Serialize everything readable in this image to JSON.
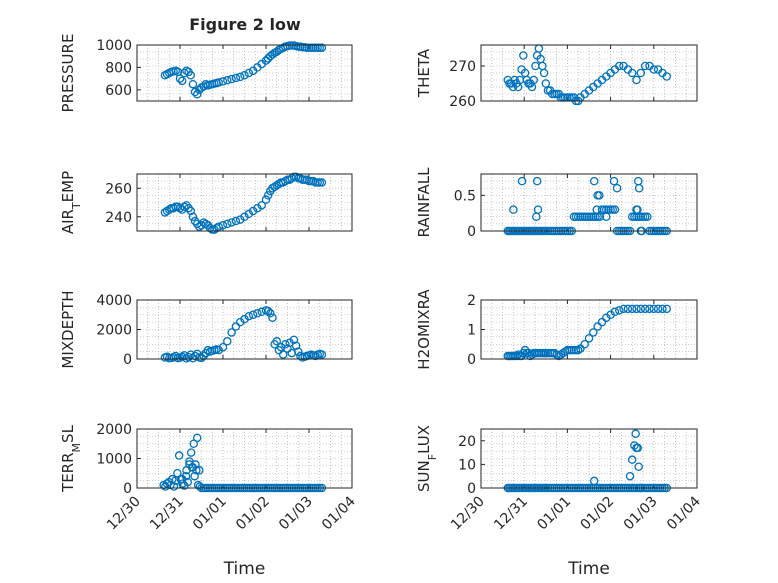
{
  "figure": {
    "title": "Figure 2 low"
  },
  "colors": {
    "marker": "#0072BD",
    "axis": "#262626",
    "grid": "#a0a0a0"
  },
  "chart_data": [
    {
      "type": "scatter",
      "title": "Figure 2 low",
      "ylabel": "PRESSURE",
      "xlabel": "",
      "xlim": [
        "12/30",
        "01/04"
      ],
      "ylim": [
        500,
        1000
      ],
      "yticks": [
        600,
        800,
        1000
      ],
      "grid": true,
      "x": [
        0.65,
        0.7,
        0.75,
        0.8,
        0.85,
        0.9,
        0.95,
        1.0,
        1.05,
        1.1,
        1.15,
        1.2,
        1.25,
        1.3,
        1.35,
        1.4,
        1.45,
        1.5,
        1.55,
        1.6,
        1.65,
        1.7,
        1.75,
        1.8,
        1.85,
        1.9,
        2.0,
        2.1,
        2.2,
        2.3,
        2.4,
        2.5,
        2.6,
        2.7,
        2.8,
        2.9,
        3.0,
        3.05,
        3.1,
        3.15,
        3.2,
        3.25,
        3.3,
        3.35,
        3.4,
        3.45,
        3.5,
        3.55,
        3.6,
        3.65,
        3.7,
        3.75,
        3.8,
        3.85,
        3.9,
        3.95,
        4.0,
        4.05,
        4.1,
        4.15,
        4.2,
        4.25,
        4.3
      ],
      "y": [
        730,
        740,
        750,
        760,
        765,
        770,
        760,
        700,
        680,
        750,
        770,
        760,
        730,
        650,
        580,
        560,
        600,
        620,
        630,
        650,
        640,
        645,
        650,
        655,
        660,
        665,
        675,
        685,
        695,
        705,
        715,
        730,
        750,
        770,
        800,
        830,
        860,
        880,
        900,
        915,
        930,
        940,
        955,
        965,
        975,
        985,
        990,
        995,
        995,
        995,
        990,
        985,
        985,
        980,
        980,
        975,
        975,
        975,
        975,
        975,
        975,
        975,
        975
      ]
    },
    {
      "type": "scatter",
      "ylabel": "THETA",
      "xlabel": "",
      "xlim": [
        "12/30",
        "01/04"
      ],
      "ylim": [
        260,
        276
      ],
      "yticks": [
        260,
        270
      ],
      "grid": true,
      "x": [
        0.62,
        0.66,
        0.7,
        0.74,
        0.78,
        0.82,
        0.86,
        0.9,
        0.94,
        0.98,
        1.02,
        1.06,
        1.1,
        1.14,
        1.18,
        1.22,
        1.26,
        1.3,
        1.34,
        1.38,
        1.42,
        1.46,
        1.5,
        1.55,
        1.6,
        1.65,
        1.7,
        1.75,
        1.8,
        1.85,
        1.9,
        1.95,
        2.0,
        2.05,
        2.1,
        2.15,
        2.2,
        2.25,
        2.3,
        2.4,
        2.5,
        2.6,
        2.7,
        2.8,
        2.9,
        3.0,
        3.1,
        3.2,
        3.3,
        3.4,
        3.5,
        3.6,
        3.7,
        3.8,
        3.9,
        4.0,
        4.1,
        4.2,
        4.3
      ],
      "y": [
        266,
        265,
        265,
        264,
        266,
        265,
        264,
        266,
        269,
        273,
        268,
        266,
        265,
        265,
        264,
        266,
        270,
        273,
        275,
        272,
        270,
        268,
        265,
        263,
        263,
        262,
        262,
        262,
        262,
        261,
        261,
        261,
        261,
        261,
        261,
        261,
        260,
        260,
        261,
        262,
        263,
        264,
        265,
        266,
        267,
        268,
        269,
        270,
        270,
        269,
        268,
        266,
        268,
        270,
        270,
        269,
        269,
        268,
        267
      ]
    },
    {
      "type": "scatter",
      "ylabel": "AIR_TEMP",
      "xlabel": "",
      "xlim": [
        "12/30",
        "01/04"
      ],
      "ylim": [
        230,
        270
      ],
      "yticks": [
        240,
        260
      ],
      "grid": true,
      "x": [
        0.65,
        0.7,
        0.75,
        0.8,
        0.85,
        0.9,
        0.95,
        1.0,
        1.05,
        1.1,
        1.15,
        1.2,
        1.25,
        1.3,
        1.35,
        1.4,
        1.45,
        1.5,
        1.55,
        1.6,
        1.65,
        1.7,
        1.75,
        1.8,
        1.85,
        1.9,
        2.0,
        2.1,
        2.2,
        2.3,
        2.4,
        2.5,
        2.6,
        2.7,
        2.8,
        2.9,
        3.0,
        3.05,
        3.1,
        3.15,
        3.2,
        3.25,
        3.3,
        3.35,
        3.4,
        3.45,
        3.5,
        3.55,
        3.6,
        3.65,
        3.7,
        3.75,
        3.8,
        3.85,
        3.9,
        3.95,
        4.0,
        4.05,
        4.1,
        4.15,
        4.2,
        4.25,
        4.3
      ],
      "y": [
        243,
        244,
        245,
        246,
        246,
        247,
        247,
        246,
        245,
        247,
        248,
        246,
        244,
        240,
        237,
        235,
        233,
        234,
        236,
        235,
        234,
        232,
        231,
        231,
        232,
        233,
        234,
        235,
        236,
        237,
        238,
        240,
        242,
        244,
        246,
        248,
        252,
        255,
        258,
        260,
        261,
        262,
        263,
        264,
        264,
        265,
        266,
        266,
        267,
        268,
        268,
        267,
        267,
        266,
        266,
        266,
        265,
        265,
        265,
        264,
        264,
        264,
        264
      ]
    },
    {
      "type": "scatter",
      "ylabel": "RAINFALL",
      "xlabel": "",
      "xlim": [
        "12/30",
        "01/04"
      ],
      "ylim": [
        0,
        0.8
      ],
      "yticks": [
        0,
        0.5
      ],
      "grid": true,
      "x": [
        0.62,
        0.66,
        0.7,
        0.74,
        0.78,
        0.82,
        0.86,
        0.9,
        0.94,
        0.98,
        1.02,
        1.06,
        1.1,
        1.14,
        1.18,
        1.22,
        1.26,
        1.3,
        1.34,
        1.38,
        1.42,
        1.46,
        1.5,
        1.55,
        1.6,
        1.65,
        1.7,
        1.75,
        1.8,
        1.85,
        1.9,
        1.95,
        2.0,
        2.05,
        2.1,
        2.15,
        2.2,
        2.25,
        2.3,
        2.35,
        2.4,
        2.45,
        2.5,
        2.55,
        2.6,
        2.65,
        2.7,
        2.75,
        2.8,
        2.85,
        2.9,
        2.95,
        3.0,
        3.05,
        3.1,
        3.15,
        3.2,
        3.25,
        3.3,
        3.35,
        3.4,
        3.45,
        3.5,
        3.55,
        3.6,
        3.65,
        3.7,
        3.75,
        3.8,
        3.85,
        3.9,
        3.95,
        4.0,
        4.05,
        4.1,
        4.15,
        4.2,
        4.25,
        4.3,
        0.75,
        0.95,
        1.3,
        1.28,
        1.32,
        2.62,
        2.7,
        2.74,
        2.68,
        2.9,
        3.08,
        3.15,
        3.6,
        3.62,
        3.64,
        3.66,
        3.7,
        3.72
      ],
      "y": [
        0,
        0,
        0,
        0,
        0,
        0,
        0,
        0,
        0,
        0,
        0,
        0,
        0,
        0,
        0,
        0,
        0,
        0,
        0,
        0,
        0,
        0,
        0,
        0,
        0,
        0,
        0,
        0,
        0,
        0,
        0,
        0,
        0,
        0,
        0,
        0.2,
        0.2,
        0.2,
        0.2,
        0.2,
        0.2,
        0.2,
        0.2,
        0.2,
        0.2,
        0.2,
        0.2,
        0.2,
        0.3,
        0.3,
        0.3,
        0.3,
        0.3,
        0.3,
        0.3,
        0,
        0,
        0,
        0,
        0,
        0,
        0,
        0.2,
        0.2,
        0.2,
        0.2,
        0.2,
        0.2,
        0.2,
        0.2,
        0,
        0,
        0,
        0,
        0,
        0,
        0,
        0,
        0,
        0.3,
        0.7,
        0.7,
        0.2,
        0.3,
        0.7,
        0.5,
        0.5,
        0.3,
        0.2,
        0.7,
        0.6,
        0.3,
        0.3,
        0.7,
        0.6,
        0,
        0
      ]
    },
    {
      "type": "scatter",
      "ylabel": "MIXDEPTH",
      "xlabel": "",
      "xlim": [
        "12/30",
        "01/04"
      ],
      "ylim": [
        0,
        4000
      ],
      "yticks": [
        0,
        2000,
        4000
      ],
      "grid": true,
      "x": [
        0.65,
        0.7,
        0.75,
        0.8,
        0.85,
        0.9,
        0.95,
        1.0,
        1.05,
        1.1,
        1.15,
        1.2,
        1.25,
        1.3,
        1.35,
        1.4,
        1.45,
        1.5,
        1.55,
        1.6,
        1.65,
        1.7,
        1.75,
        1.8,
        1.85,
        1.9,
        2.0,
        2.1,
        2.2,
        2.3,
        2.4,
        2.5,
        2.6,
        2.7,
        2.8,
        2.9,
        3.0,
        3.05,
        3.1,
        3.15,
        3.2,
        3.25,
        3.3,
        3.35,
        3.4,
        3.45,
        3.5,
        3.55,
        3.6,
        3.65,
        3.7,
        3.75,
        3.8,
        3.85,
        3.9,
        3.95,
        4.0,
        4.05,
        4.1,
        4.15,
        4.2,
        4.25,
        4.3
      ],
      "y": [
        100,
        150,
        50,
        80,
        120,
        200,
        60,
        90,
        150,
        250,
        40,
        130,
        300,
        50,
        200,
        350,
        100,
        80,
        200,
        400,
        600,
        500,
        550,
        600,
        650,
        600,
        800,
        1200,
        1800,
        2200,
        2500,
        2700,
        2900,
        3000,
        3100,
        3200,
        3300,
        3250,
        3100,
        2800,
        1000,
        1200,
        600,
        800,
        300,
        1000,
        700,
        1100,
        400,
        1300,
        900,
        500,
        200,
        100,
        150,
        200,
        250,
        300,
        250,
        200,
        300,
        350,
        300
      ]
    },
    {
      "type": "scatter",
      "ylabel": "H2OMIXRA",
      "xlabel": "",
      "xlim": [
        "12/30",
        "01/04"
      ],
      "ylim": [
        0,
        2
      ],
      "yticks": [
        0,
        1,
        2
      ],
      "grid": true,
      "x": [
        0.62,
        0.66,
        0.7,
        0.74,
        0.78,
        0.82,
        0.86,
        0.9,
        0.94,
        0.98,
        1.02,
        1.06,
        1.1,
        1.14,
        1.18,
        1.22,
        1.26,
        1.3,
        1.34,
        1.38,
        1.42,
        1.46,
        1.5,
        1.55,
        1.6,
        1.65,
        1.7,
        1.75,
        1.8,
        1.85,
        1.9,
        1.95,
        2.0,
        2.05,
        2.1,
        2.15,
        2.2,
        2.25,
        2.3,
        2.4,
        2.5,
        2.6,
        2.7,
        2.8,
        2.9,
        3.0,
        3.1,
        3.2,
        3.3,
        3.4,
        3.5,
        3.6,
        3.7,
        3.8,
        3.9,
        4.0,
        4.1,
        4.2,
        4.3
      ],
      "y": [
        0.1,
        0.1,
        0.1,
        0.1,
        0.1,
        0.1,
        0.15,
        0.1,
        0.1,
        0.2,
        0.3,
        0.2,
        0.2,
        0.1,
        0.15,
        0.2,
        0.2,
        0.2,
        0.2,
        0.2,
        0.2,
        0.2,
        0.2,
        0.2,
        0.2,
        0.2,
        0.2,
        0.15,
        0.1,
        0.15,
        0.2,
        0.25,
        0.3,
        0.3,
        0.3,
        0.3,
        0.3,
        0.3,
        0.35,
        0.5,
        0.7,
        0.9,
        1.1,
        1.25,
        1.4,
        1.5,
        1.6,
        1.65,
        1.7,
        1.7,
        1.7,
        1.7,
        1.7,
        1.7,
        1.7,
        1.7,
        1.7,
        1.7,
        1.7
      ]
    },
    {
      "type": "scatter",
      "ylabel": "TERR_MSL",
      "xlabel": "Time",
      "xlim": [
        "12/30",
        "01/04"
      ],
      "xticks": [
        "12/30",
        "12/31",
        "01/01",
        "01/02",
        "01/03",
        "01/04"
      ],
      "ylim": [
        0,
        2000
      ],
      "yticks": [
        0,
        1000,
        2000
      ],
      "grid": true,
      "x": [
        0.62,
        0.66,
        0.7,
        0.74,
        0.78,
        0.82,
        0.86,
        0.9,
        0.94,
        0.98,
        1.02,
        1.06,
        1.1,
        1.14,
        1.18,
        1.22,
        1.26,
        1.3,
        1.34,
        1.38,
        1.42,
        1.46,
        1.5,
        1.55,
        1.6,
        1.65,
        1.7,
        1.75,
        1.8,
        1.85,
        1.9,
        1.95,
        2.0,
        2.05,
        2.1,
        2.15,
        2.2,
        2.25,
        2.3,
        2.35,
        2.4,
        2.45,
        2.5,
        2.55,
        2.6,
        2.65,
        2.7,
        2.75,
        2.8,
        2.85,
        2.9,
        2.95,
        3.0,
        3.05,
        3.1,
        3.15,
        3.2,
        3.25,
        3.3,
        3.35,
        3.4,
        3.45,
        3.5,
        3.55,
        3.6,
        3.65,
        3.7,
        3.75,
        3.8,
        3.85,
        3.9,
        3.95,
        4.0,
        4.05,
        4.1,
        4.15,
        4.2,
        4.25,
        4.3,
        1.15,
        1.22,
        1.32,
        1.4,
        1.45,
        1.36,
        1.28,
        1.05
      ],
      "y": [
        100,
        50,
        150,
        200,
        100,
        300,
        50,
        250,
        500,
        1100,
        300,
        150,
        80,
        400,
        200,
        800,
        1200,
        700,
        400,
        600,
        100,
        50,
        0,
        0,
        0,
        0,
        0,
        0,
        0,
        0,
        0,
        0,
        0,
        0,
        0,
        0,
        0,
        0,
        0,
        0,
        0,
        0,
        0,
        0,
        0,
        0,
        0,
        0,
        0,
        0,
        0,
        0,
        0,
        0,
        0,
        0,
        0,
        0,
        0,
        0,
        0,
        0,
        0,
        0,
        0,
        0,
        0,
        0,
        0,
        0,
        0,
        0,
        0,
        0,
        0,
        0,
        0,
        0,
        0,
        600,
        900,
        1500,
        1700,
        600,
        800,
        700,
        300
      ]
    },
    {
      "type": "scatter",
      "ylabel": "SUN_FLUX",
      "xlabel": "Time",
      "xlim": [
        "12/30",
        "01/04"
      ],
      "xticks": [
        "12/30",
        "12/31",
        "01/01",
        "01/02",
        "01/03",
        "01/04"
      ],
      "ylim": [
        0,
        25
      ],
      "yticks": [
        0,
        10,
        20
      ],
      "grid": true,
      "x": [
        0.62,
        0.66,
        0.7,
        0.74,
        0.78,
        0.82,
        0.86,
        0.9,
        0.94,
        0.98,
        1.02,
        1.06,
        1.1,
        1.14,
        1.18,
        1.22,
        1.26,
        1.3,
        1.34,
        1.38,
        1.42,
        1.46,
        1.5,
        1.55,
        1.6,
        1.65,
        1.7,
        1.75,
        1.8,
        1.85,
        1.9,
        1.95,
        2.0,
        2.05,
        2.1,
        2.15,
        2.2,
        2.25,
        2.3,
        2.35,
        2.4,
        2.45,
        2.5,
        2.55,
        2.6,
        2.65,
        2.7,
        2.75,
        2.8,
        2.85,
        2.9,
        2.95,
        3.0,
        3.05,
        3.1,
        3.15,
        3.2,
        3.25,
        3.3,
        3.35,
        3.4,
        3.45,
        3.5,
        3.55,
        3.6,
        3.65,
        3.7,
        3.75,
        3.8,
        3.85,
        3.9,
        3.95,
        4.0,
        4.05,
        4.1,
        4.15,
        4.2,
        4.25,
        4.3,
        2.62,
        3.45,
        3.5,
        3.55,
        3.58,
        3.6,
        3.63,
        3.65,
        3.68,
        3.7
      ],
      "y": [
        0,
        0,
        0,
        0,
        0,
        0,
        0,
        0,
        0,
        0,
        0,
        0,
        0,
        0,
        0,
        0,
        0,
        0,
        0,
        0,
        0,
        0,
        0,
        0,
        0,
        0,
        0,
        0,
        0,
        0,
        0,
        0,
        0,
        0,
        0,
        0,
        0,
        0,
        0,
        0,
        0,
        0,
        0,
        0,
        0,
        0,
        0,
        0,
        0,
        0,
        0,
        0,
        0,
        0,
        0,
        0,
        0,
        0,
        0,
        0,
        0,
        0,
        0,
        0,
        0,
        0,
        0,
        0,
        0,
        0,
        0,
        0,
        0,
        0,
        0,
        0,
        0,
        0,
        0,
        3,
        5,
        12,
        18,
        23,
        17,
        17,
        9,
        0,
        0
      ]
    }
  ]
}
